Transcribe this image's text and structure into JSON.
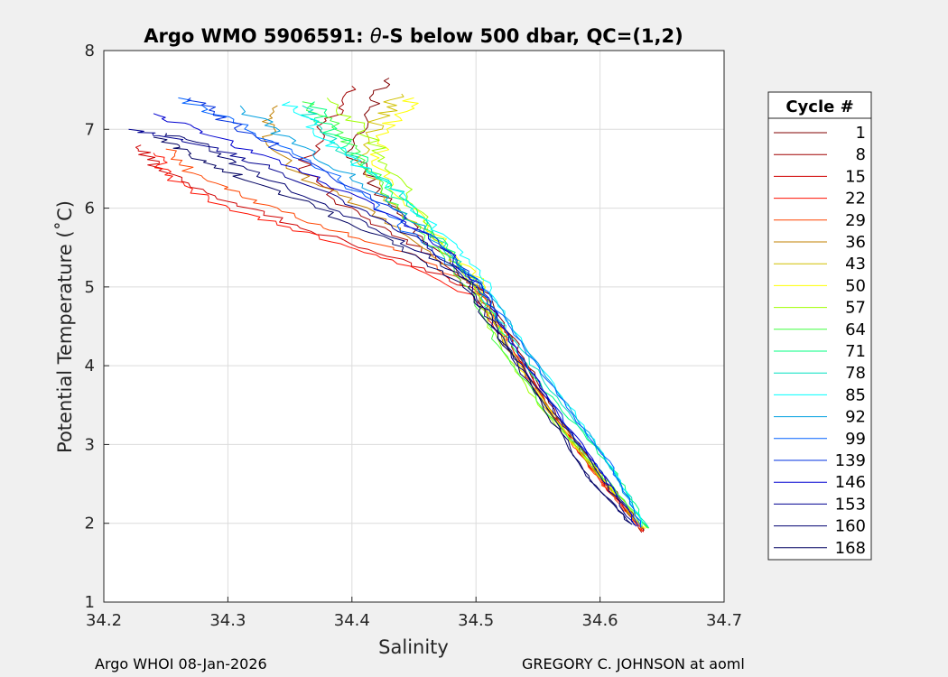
{
  "chart_data": {
    "type": "line",
    "title_prefix": "Argo WMO 5906591: ",
    "title_theta": "θ",
    "title_suffix": "-S below 500 dbar,  QC=(1,2)",
    "xlabel": "Salinity",
    "ylabel": "Potential Temperature (˚C)",
    "xlim": [
      34.2,
      34.7
    ],
    "ylim": [
      1,
      8
    ],
    "xticks": [
      "34.2",
      "34.3",
      "34.4",
      "34.5",
      "34.6",
      "34.7"
    ],
    "yticks": [
      "1",
      "2",
      "3",
      "4",
      "5",
      "6",
      "7",
      "8"
    ],
    "grid": true,
    "legend_position": "outside-right",
    "legend_title": "Cycle #",
    "series": [
      {
        "name": "1",
        "color": "#800000",
        "points": [
          [
            34.637,
            1.9
          ],
          [
            34.61,
            2.45
          ],
          [
            34.57,
            3.25
          ],
          [
            34.535,
            4.2
          ],
          [
            34.51,
            4.9
          ],
          [
            34.47,
            5.45
          ],
          [
            34.43,
            6.05
          ],
          [
            34.4,
            6.7
          ],
          [
            34.41,
            7.25
          ],
          [
            34.43,
            7.65
          ]
        ]
      },
      {
        "name": "8",
        "color": "#a00000",
        "points": [
          [
            34.635,
            1.88
          ],
          [
            34.605,
            2.5
          ],
          [
            34.565,
            3.3
          ],
          [
            34.53,
            4.25
          ],
          [
            34.505,
            4.95
          ],
          [
            34.46,
            5.45
          ],
          [
            34.4,
            5.95
          ],
          [
            34.36,
            6.5
          ],
          [
            34.38,
            7.1
          ],
          [
            34.4,
            7.55
          ]
        ]
      },
      {
        "name": "15",
        "color": "#d00000",
        "points": [
          [
            34.636,
            1.89
          ],
          [
            34.6,
            2.55
          ],
          [
            34.56,
            3.4
          ],
          [
            34.53,
            4.3
          ],
          [
            34.5,
            4.95
          ],
          [
            34.44,
            5.35
          ],
          [
            34.36,
            5.75
          ],
          [
            34.29,
            6.15
          ],
          [
            34.24,
            6.55
          ],
          [
            34.23,
            6.8
          ]
        ]
      },
      {
        "name": "22",
        "color": "#ff1000",
        "points": [
          [
            34.635,
            1.9
          ],
          [
            34.6,
            2.55
          ],
          [
            34.56,
            3.4
          ],
          [
            34.525,
            4.3
          ],
          [
            34.5,
            4.85
          ],
          [
            34.44,
            5.3
          ],
          [
            34.37,
            5.65
          ],
          [
            34.3,
            6.0
          ],
          [
            34.25,
            6.4
          ],
          [
            34.24,
            6.7
          ]
        ]
      },
      {
        "name": "29",
        "color": "#ff4500",
        "points": [
          [
            34.634,
            1.91
          ],
          [
            34.6,
            2.55
          ],
          [
            34.56,
            3.4
          ],
          [
            34.525,
            4.35
          ],
          [
            34.5,
            4.95
          ],
          [
            34.45,
            5.4
          ],
          [
            34.38,
            5.75
          ],
          [
            34.32,
            6.1
          ],
          [
            34.27,
            6.45
          ],
          [
            34.25,
            6.75
          ]
        ]
      },
      {
        "name": "36",
        "color": "#c08000",
        "points": [
          [
            34.634,
            1.92
          ],
          [
            34.6,
            2.6
          ],
          [
            34.56,
            3.45
          ],
          [
            34.52,
            4.35
          ],
          [
            34.5,
            5.0
          ],
          [
            34.46,
            5.5
          ],
          [
            34.41,
            6.0
          ],
          [
            34.36,
            6.4
          ],
          [
            34.33,
            6.9
          ],
          [
            34.34,
            7.3
          ]
        ]
      },
      {
        "name": "43",
        "color": "#d0c000",
        "points": [
          [
            34.635,
            1.93
          ],
          [
            34.6,
            2.6
          ],
          [
            34.555,
            3.5
          ],
          [
            34.52,
            4.4
          ],
          [
            34.5,
            5.05
          ],
          [
            34.47,
            5.55
          ],
          [
            34.43,
            6.1
          ],
          [
            34.41,
            6.6
          ],
          [
            34.42,
            7.1
          ],
          [
            34.44,
            7.45
          ]
        ]
      },
      {
        "name": "50",
        "color": "#ffff00",
        "points": [
          [
            34.636,
            1.93
          ],
          [
            34.6,
            2.6
          ],
          [
            34.555,
            3.5
          ],
          [
            34.52,
            4.4
          ],
          [
            34.505,
            5.05
          ],
          [
            34.475,
            5.55
          ],
          [
            34.44,
            6.1
          ],
          [
            34.42,
            6.6
          ],
          [
            34.43,
            7.05
          ],
          [
            34.45,
            7.4
          ]
        ]
      },
      {
        "name": "57",
        "color": "#a0ff00",
        "points": [
          [
            34.637,
            1.94
          ],
          [
            34.6,
            2.6
          ],
          [
            34.55,
            3.5
          ],
          [
            34.515,
            4.35
          ],
          [
            34.5,
            5.0
          ],
          [
            34.47,
            5.55
          ],
          [
            34.45,
            6.1
          ],
          [
            34.43,
            6.55
          ],
          [
            34.41,
            7.0
          ],
          [
            34.38,
            7.4
          ]
        ]
      },
      {
        "name": "64",
        "color": "#40ff40",
        "points": [
          [
            34.638,
            1.94
          ],
          [
            34.6,
            2.65
          ],
          [
            34.55,
            3.55
          ],
          [
            34.515,
            4.35
          ],
          [
            34.49,
            5.05
          ],
          [
            34.46,
            5.6
          ],
          [
            34.43,
            6.15
          ],
          [
            34.41,
            6.6
          ],
          [
            34.39,
            7.0
          ],
          [
            34.36,
            7.35
          ]
        ]
      },
      {
        "name": "71",
        "color": "#00ff80",
        "points": [
          [
            34.638,
            1.95
          ],
          [
            34.61,
            2.7
          ],
          [
            34.56,
            3.6
          ],
          [
            34.52,
            4.45
          ],
          [
            34.5,
            5.05
          ],
          [
            34.47,
            5.6
          ],
          [
            34.44,
            6.1
          ],
          [
            34.41,
            6.6
          ],
          [
            34.38,
            7.0
          ],
          [
            34.37,
            7.35
          ]
        ]
      },
      {
        "name": "78",
        "color": "#00e0c0",
        "points": [
          [
            34.637,
            1.95
          ],
          [
            34.61,
            2.7
          ],
          [
            34.565,
            3.6
          ],
          [
            34.525,
            4.45
          ],
          [
            34.5,
            5.05
          ],
          [
            34.47,
            5.6
          ],
          [
            34.44,
            6.15
          ],
          [
            34.4,
            6.65
          ],
          [
            34.37,
            7.05
          ],
          [
            34.36,
            7.3
          ]
        ]
      },
      {
        "name": "85",
        "color": "#00ffff",
        "points": [
          [
            34.636,
            1.96
          ],
          [
            34.61,
            2.7
          ],
          [
            34.57,
            3.6
          ],
          [
            34.53,
            4.45
          ],
          [
            34.51,
            5.05
          ],
          [
            34.48,
            5.55
          ],
          [
            34.44,
            6.15
          ],
          [
            34.4,
            6.6
          ],
          [
            34.37,
            7.0
          ],
          [
            34.35,
            7.35
          ]
        ]
      },
      {
        "name": "92",
        "color": "#00a0e0",
        "points": [
          [
            34.635,
            1.95
          ],
          [
            34.61,
            2.7
          ],
          [
            34.57,
            3.6
          ],
          [
            34.53,
            4.45
          ],
          [
            34.505,
            5.05
          ],
          [
            34.47,
            5.55
          ],
          [
            34.43,
            6.1
          ],
          [
            34.39,
            6.5
          ],
          [
            34.34,
            6.95
          ],
          [
            34.31,
            7.3
          ]
        ]
      },
      {
        "name": "99",
        "color": "#0060ff",
        "points": [
          [
            34.634,
            1.95
          ],
          [
            34.61,
            2.7
          ],
          [
            34.57,
            3.55
          ],
          [
            34.53,
            4.4
          ],
          [
            34.505,
            5.0
          ],
          [
            34.46,
            5.5
          ],
          [
            34.42,
            6.05
          ],
          [
            34.37,
            6.55
          ],
          [
            34.31,
            7.05
          ],
          [
            34.26,
            7.4
          ]
        ]
      },
      {
        "name": "139",
        "color": "#0030e0",
        "points": [
          [
            34.632,
            1.96
          ],
          [
            34.6,
            2.65
          ],
          [
            34.56,
            3.55
          ],
          [
            34.525,
            4.4
          ],
          [
            34.5,
            5.05
          ],
          [
            34.47,
            5.55
          ],
          [
            34.42,
            6.1
          ],
          [
            34.35,
            6.7
          ],
          [
            34.3,
            7.1
          ],
          [
            34.27,
            7.4
          ]
        ]
      },
      {
        "name": "146",
        "color": "#0000d0",
        "points": [
          [
            34.63,
            1.97
          ],
          [
            34.6,
            2.65
          ],
          [
            34.56,
            3.55
          ],
          [
            34.525,
            4.4
          ],
          [
            34.5,
            5.05
          ],
          [
            34.47,
            5.55
          ],
          [
            34.41,
            6.1
          ],
          [
            34.34,
            6.6
          ],
          [
            34.28,
            6.95
          ],
          [
            34.24,
            7.2
          ]
        ]
      },
      {
        "name": "153",
        "color": "#000090",
        "points": [
          [
            34.628,
            1.97
          ],
          [
            34.6,
            2.6
          ],
          [
            34.56,
            3.5
          ],
          [
            34.52,
            4.35
          ],
          [
            34.495,
            5.05
          ],
          [
            34.46,
            5.55
          ],
          [
            34.4,
            6.05
          ],
          [
            34.33,
            6.55
          ],
          [
            34.27,
            6.85
          ],
          [
            34.22,
            7.0
          ]
        ]
      },
      {
        "name": "160",
        "color": "#000070",
        "points": [
          [
            34.626,
            1.98
          ],
          [
            34.59,
            2.6
          ],
          [
            34.555,
            3.5
          ],
          [
            34.52,
            4.35
          ],
          [
            34.495,
            5.05
          ],
          [
            34.45,
            5.5
          ],
          [
            34.39,
            5.95
          ],
          [
            34.32,
            6.45
          ],
          [
            34.28,
            6.8
          ],
          [
            34.25,
            6.95
          ]
        ]
      },
      {
        "name": "168",
        "color": "#000060",
        "points": [
          [
            34.625,
            1.99
          ],
          [
            34.59,
            2.6
          ],
          [
            34.555,
            3.45
          ],
          [
            34.52,
            4.35
          ],
          [
            34.49,
            5.0
          ],
          [
            34.44,
            5.5
          ],
          [
            34.38,
            5.95
          ],
          [
            34.31,
            6.4
          ],
          [
            34.27,
            6.7
          ],
          [
            34.24,
            6.9
          ]
        ]
      }
    ]
  },
  "footer": {
    "left": "Argo WHOI 08-Jan-2026",
    "right": "GREGORY C. JOHNSON at aoml"
  }
}
